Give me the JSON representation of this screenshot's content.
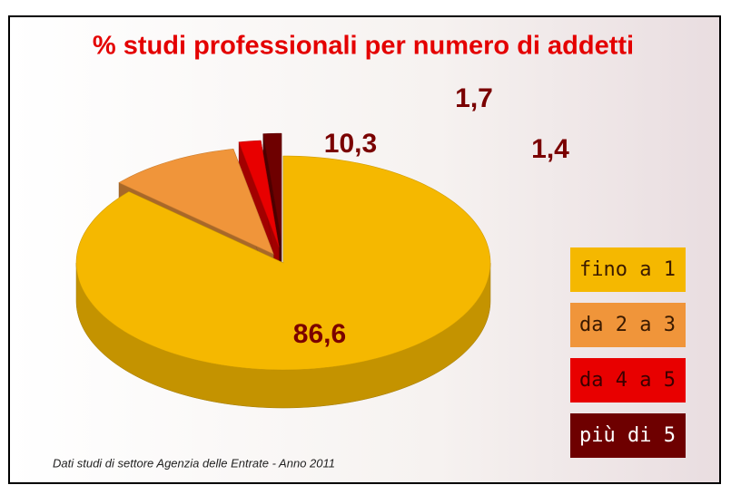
{
  "chart_data": {
    "type": "pie3d",
    "title": "% studi professionali per numero di addetti",
    "categories": [
      "fino a 1",
      "da 2 a 3",
      "da 4 a 5",
      "più di 5"
    ],
    "values": [
      86.6,
      10.3,
      1.7,
      1.4
    ],
    "value_labels": [
      "86,6",
      "10,3",
      "1,7",
      "1,4"
    ],
    "colors": [
      "#f5b800",
      "#f0953a",
      "#e80000",
      "#6e0000"
    ],
    "note": "Dati studi di settore Agenzia delle Entrate - Anno 2011"
  }
}
